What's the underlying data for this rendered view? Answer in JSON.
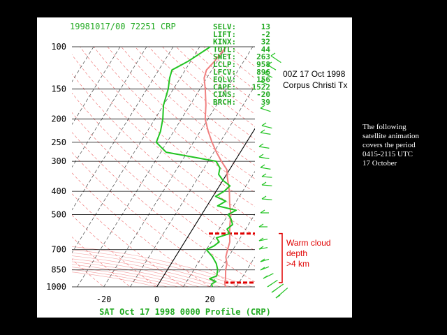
{
  "header": {
    "id_line": "19981017/00 72251  CRP",
    "footer": "SAT Oct 17 1998 0000 Profile (CRP)"
  },
  "indices": [
    {
      "key": "SELV:",
      "value": "13"
    },
    {
      "key": "LIFT:",
      "value": "-2"
    },
    {
      "key": "KINX:",
      "value": "32"
    },
    {
      "key": "TOTL:",
      "value": "44"
    },
    {
      "key": "SWET:",
      "value": "263"
    },
    {
      "key": "LCLP:",
      "value": "958"
    },
    {
      "key": "LFCV:",
      "value": "896"
    },
    {
      "key": "EQLV:",
      "value": "156"
    },
    {
      "key": "CAPE:",
      "value": "1522"
    },
    {
      "key": "CINS:",
      "value": "-20"
    },
    {
      "key": "BRCH:",
      "value": "39"
    }
  ],
  "sounding_title": {
    "line1": "00Z 17 Oct 1998",
    "line2": "Corpus Christi Tx"
  },
  "annotation": {
    "warm_cloud_lines": [
      "Warm cloud",
      "depth",
      ">4 km"
    ]
  },
  "side_note": {
    "lines": [
      "The following",
      "satellite animation",
      "covers the period",
      "0415-2115 UTC",
      "17 October"
    ]
  },
  "colors": {
    "temperature": "#f08080",
    "dewpoint": "#22c422",
    "label_green": "#22aa22",
    "annotation_red": "#e00000"
  },
  "chart_data": {
    "type": "line",
    "xlabel": "",
    "ylabel": "",
    "x_unit": "degC",
    "y_unit": "hPa",
    "xlim": [
      -32,
      37
    ],
    "ylim": [
      1000,
      100
    ],
    "y_scale": "log",
    "x_ticks": [
      -20,
      0,
      20
    ],
    "x_tick_labels": [
      "-20",
      "0",
      "20"
    ],
    "y_ticks": [
      100,
      150,
      200,
      250,
      300,
      400,
      500,
      700,
      850,
      1000
    ],
    "y_tick_labels": [
      "100",
      "150",
      "200",
      "250",
      "300",
      "400",
      "500",
      "700",
      "850",
      "1000"
    ],
    "skew": "temperature isotherms skewed",
    "series": [
      {
        "key": "temperature",
        "points": [
          [
            1000,
            26
          ],
          [
            975,
            25
          ],
          [
            925,
            24
          ],
          [
            850,
            22
          ],
          [
            800,
            21
          ],
          [
            750,
            19
          ],
          [
            700,
            18
          ],
          [
            650,
            17
          ],
          [
            600,
            15
          ],
          [
            550,
            13
          ],
          [
            500,
            11
          ],
          [
            450,
            8
          ],
          [
            400,
            5
          ],
          [
            350,
            1
          ],
          [
            325,
            -1
          ],
          [
            300,
            -5
          ],
          [
            275,
            -9
          ],
          [
            250,
            -13
          ],
          [
            225,
            -17
          ],
          [
            200,
            -21
          ],
          [
            175,
            -24
          ],
          [
            150,
            -28
          ],
          [
            135,
            -31
          ],
          [
            125,
            -32
          ],
          [
            115,
            -31
          ],
          [
            100,
            -30
          ]
        ]
      },
      {
        "key": "dewpoint",
        "points": [
          [
            1000,
            21
          ],
          [
            975,
            20
          ],
          [
            950,
            21
          ],
          [
            925,
            18
          ],
          [
            900,
            20
          ],
          [
            850,
            19
          ],
          [
            800,
            17
          ],
          [
            750,
            14
          ],
          [
            700,
            10
          ],
          [
            675,
            12
          ],
          [
            650,
            13
          ],
          [
            625,
            11
          ],
          [
            600,
            15
          ],
          [
            575,
            13
          ],
          [
            550,
            14
          ],
          [
            520,
            12
          ],
          [
            500,
            10
          ],
          [
            480,
            12
          ],
          [
            460,
            4
          ],
          [
            440,
            6
          ],
          [
            420,
            1
          ],
          [
            400,
            3
          ],
          [
            380,
            4
          ],
          [
            360,
            0
          ],
          [
            340,
            -3
          ],
          [
            320,
            -4
          ],
          [
            300,
            -7
          ],
          [
            290,
            -15
          ],
          [
            275,
            -28
          ],
          [
            250,
            -34
          ],
          [
            225,
            -35
          ],
          [
            200,
            -37
          ],
          [
            175,
            -40
          ],
          [
            150,
            -42
          ],
          [
            135,
            -44
          ],
          [
            125,
            -45
          ],
          [
            115,
            -41
          ],
          [
            100,
            -36
          ]
        ]
      }
    ],
    "annotations": {
      "warm_cloud_top_hPa": 600,
      "warm_cloud_base_hPa": 960,
      "warm_cloud_depth": ">4 km"
    }
  }
}
